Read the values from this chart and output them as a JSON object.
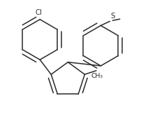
{
  "bg_color": "#ffffff",
  "line_color": "#2a2a2a",
  "line_width": 1.1,
  "font_size": 7.2,
  "figsize": [
    2.12,
    1.67
  ],
  "dpi": 100,
  "cl_label": "Cl",
  "s_label": "S",
  "methyl_label": "CH₃"
}
